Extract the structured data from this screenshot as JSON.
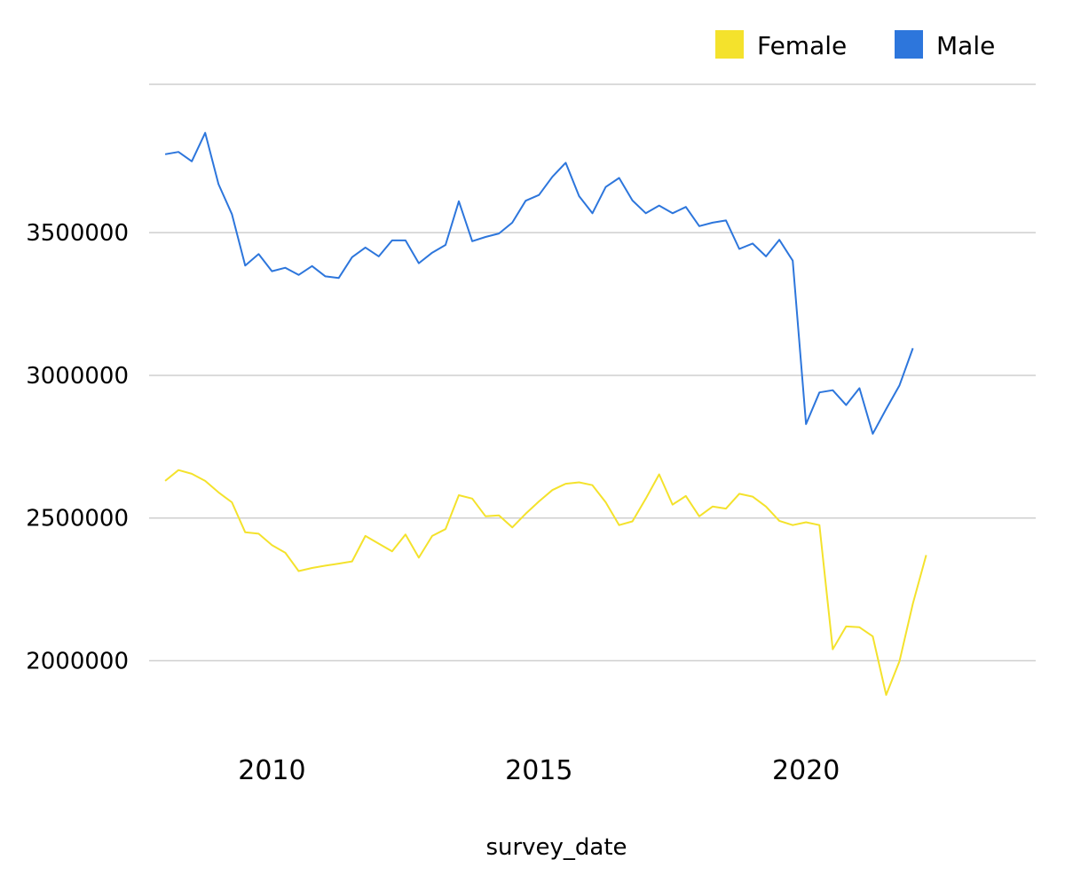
{
  "chart_data": {
    "type": "line",
    "xlabel": "survey_date",
    "ylabel": "",
    "xlim": [
      2007.7,
      2024.3
    ],
    "ylim": [
      1765000,
      4020000
    ],
    "x_ticks": [
      2010,
      2015,
      2020
    ],
    "x_tick_labels": [
      "2010",
      "2015",
      "2020"
    ],
    "y_ticks": [
      2000000,
      2500000,
      3000000,
      3500000
    ],
    "y_tick_labels": [
      "2000000",
      "2500000",
      "3000000",
      "3500000"
    ],
    "grid": true,
    "legend_position": "top-right",
    "series": [
      {
        "name": "Female",
        "color": "#f4e22c",
        "points": [
          [
            2008.0,
            2630000
          ],
          [
            2008.25,
            2668000
          ],
          [
            2008.5,
            2655000
          ],
          [
            2008.75,
            2630000
          ],
          [
            2009.0,
            2590000
          ],
          [
            2009.25,
            2555000
          ],
          [
            2009.5,
            2450000
          ],
          [
            2009.75,
            2445000
          ],
          [
            2010.0,
            2405000
          ],
          [
            2010.25,
            2378000
          ],
          [
            2010.5,
            2314000
          ],
          [
            2010.75,
            2325000
          ],
          [
            2011.0,
            2333000
          ],
          [
            2011.25,
            2340000
          ],
          [
            2011.5,
            2348000
          ],
          [
            2011.75,
            2437000
          ],
          [
            2012.0,
            2410000
          ],
          [
            2012.25,
            2383000
          ],
          [
            2012.5,
            2442000
          ],
          [
            2012.75,
            2361000
          ],
          [
            2013.0,
            2437000
          ],
          [
            2013.25,
            2461000
          ],
          [
            2013.5,
            2580000
          ],
          [
            2013.75,
            2568000
          ],
          [
            2014.0,
            2506000
          ],
          [
            2014.25,
            2509000
          ],
          [
            2014.5,
            2467000
          ],
          [
            2014.75,
            2515000
          ],
          [
            2015.0,
            2558000
          ],
          [
            2015.25,
            2598000
          ],
          [
            2015.5,
            2620000
          ],
          [
            2015.75,
            2625000
          ],
          [
            2016.0,
            2615000
          ],
          [
            2016.25,
            2555000
          ],
          [
            2016.5,
            2475000
          ],
          [
            2016.75,
            2488000
          ],
          [
            2017.0,
            2568000
          ],
          [
            2017.25,
            2653000
          ],
          [
            2017.5,
            2547000
          ],
          [
            2017.75,
            2577000
          ],
          [
            2018.0,
            2506000
          ],
          [
            2018.25,
            2540000
          ],
          [
            2018.5,
            2533000
          ],
          [
            2018.75,
            2585000
          ],
          [
            2019.0,
            2575000
          ],
          [
            2019.25,
            2540000
          ],
          [
            2019.5,
            2490000
          ],
          [
            2019.75,
            2475000
          ],
          [
            2020.0,
            2485000
          ],
          [
            2020.25,
            2475000
          ],
          [
            2020.5,
            2040000
          ],
          [
            2020.75,
            2120000
          ],
          [
            2021.0,
            2117000
          ],
          [
            2021.25,
            2085000
          ],
          [
            2021.5,
            1880000
          ],
          [
            2021.75,
            1998000
          ],
          [
            2022.0,
            2200000
          ],
          [
            2022.25,
            2370000
          ]
        ]
      },
      {
        "name": "Male",
        "color": "#2d76dc",
        "points": [
          [
            2008.0,
            3775000
          ],
          [
            2008.25,
            3783000
          ],
          [
            2008.5,
            3750000
          ],
          [
            2008.75,
            3850000
          ],
          [
            2009.0,
            3670000
          ],
          [
            2009.25,
            3565000
          ],
          [
            2009.5,
            3385000
          ],
          [
            2009.75,
            3425000
          ],
          [
            2010.0,
            3365000
          ],
          [
            2010.25,
            3377000
          ],
          [
            2010.5,
            3352000
          ],
          [
            2010.75,
            3383000
          ],
          [
            2011.0,
            3347000
          ],
          [
            2011.25,
            3341000
          ],
          [
            2011.5,
            3414000
          ],
          [
            2011.75,
            3448000
          ],
          [
            2012.0,
            3417000
          ],
          [
            2012.25,
            3473000
          ],
          [
            2012.5,
            3473000
          ],
          [
            2012.75,
            3393000
          ],
          [
            2013.0,
            3430000
          ],
          [
            2013.25,
            3457000
          ],
          [
            2013.5,
            3610000
          ],
          [
            2013.75,
            3470000
          ],
          [
            2014.0,
            3485000
          ],
          [
            2014.25,
            3497000
          ],
          [
            2014.5,
            3535000
          ],
          [
            2014.75,
            3612000
          ],
          [
            2015.0,
            3632000
          ],
          [
            2015.25,
            3696000
          ],
          [
            2015.5,
            3745000
          ],
          [
            2015.75,
            3628000
          ],
          [
            2016.0,
            3568000
          ],
          [
            2016.25,
            3660000
          ],
          [
            2016.5,
            3692000
          ],
          [
            2016.75,
            3613000
          ],
          [
            2017.0,
            3568000
          ],
          [
            2017.25,
            3595000
          ],
          [
            2017.5,
            3568000
          ],
          [
            2017.75,
            3590000
          ],
          [
            2018.0,
            3523000
          ],
          [
            2018.25,
            3535000
          ],
          [
            2018.5,
            3543000
          ],
          [
            2018.75,
            3443000
          ],
          [
            2019.0,
            3462000
          ],
          [
            2019.25,
            3417000
          ],
          [
            2019.5,
            3475000
          ],
          [
            2019.75,
            3402000
          ],
          [
            2020.0,
            2829000
          ],
          [
            2020.25,
            2940000
          ],
          [
            2020.5,
            2948000
          ],
          [
            2020.75,
            2896000
          ],
          [
            2021.0,
            2955000
          ],
          [
            2021.25,
            2795000
          ],
          [
            2021.5,
            2882000
          ],
          [
            2021.75,
            2965000
          ],
          [
            2022.0,
            3095000
          ]
        ]
      }
    ]
  }
}
